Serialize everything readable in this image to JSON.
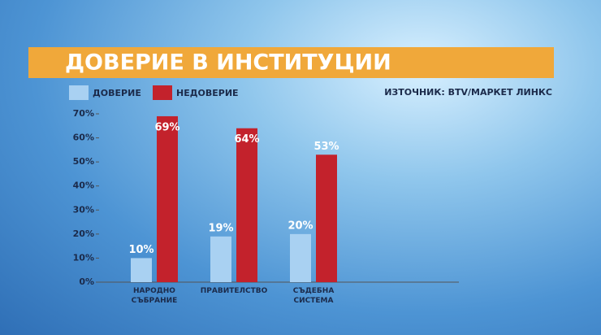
{
  "chart_data": {
    "type": "bar",
    "title": "ДОВЕРИЕ В ИНСТИТУЦИИ",
    "source": "ИЗТОЧНИК: BTV/МАРКЕТ ЛИНКС",
    "categories": [
      "НАРОДНО СЪБРАНИЕ",
      "ПРАВИТЕЛСТВО",
      "СЪДЕБНА СИСТЕМА"
    ],
    "series": [
      {
        "name": "ДОВЕРИЕ",
        "color": "#a9d1f2",
        "values": [
          10,
          19,
          20
        ],
        "value_labels": [
          "10%",
          "19%",
          "20%"
        ]
      },
      {
        "name": "НЕДОВЕРИЕ",
        "color": "#c3222c",
        "values": [
          69,
          64,
          53
        ],
        "value_labels": [
          "69%",
          "64%",
          "53%"
        ]
      }
    ],
    "ylim": [
      0,
      70
    ],
    "yticks": [
      {
        "value": 0,
        "label": "0%"
      },
      {
        "value": 10,
        "label": "10%"
      },
      {
        "value": 20,
        "label": "20%"
      },
      {
        "value": 30,
        "label": "30%"
      },
      {
        "value": 40,
        "label": "40%"
      },
      {
        "value": 50,
        "label": "50%"
      },
      {
        "value": 60,
        "label": "60%"
      },
      {
        "value": 70,
        "label": "70%"
      }
    ],
    "grid": false,
    "legend": "top-left"
  }
}
